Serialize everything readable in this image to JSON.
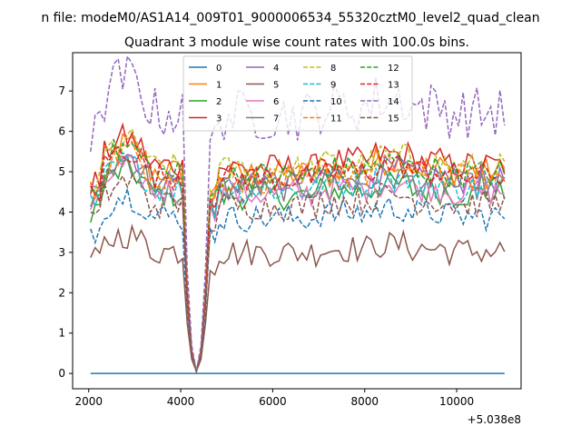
{
  "chart_data": {
    "type": "line",
    "suptitle": "n file: modeM0/AS1A14_009T01_9000006534_55320cztM0_level2_quad_clean",
    "title": "Quadrant 3 module wise count rates with 100.0s bins.",
    "x_offset_label": "+5.038e8",
    "xlim": [
      1650,
      11400
    ],
    "ylim": [
      -0.38,
      7.95
    ],
    "x_ticks": [
      2000,
      4000,
      6000,
      8000,
      10000
    ],
    "y_ticks": [
      0,
      1,
      2,
      3,
      4,
      5,
      6,
      7
    ],
    "x_range": [
      2040,
      11040
    ],
    "bin_seconds": 100,
    "dip_range": [
      4140,
      4540
    ],
    "legend_position": "upper center",
    "series": [
      {
        "name": "0",
        "color": "#1f77b4",
        "dash": "solid",
        "base": 0.0
      },
      {
        "name": "1",
        "color": "#ff7f0e",
        "dash": "solid",
        "base": 4.95
      },
      {
        "name": "2",
        "color": "#2ca02c",
        "dash": "solid",
        "base": 4.4
      },
      {
        "name": "3",
        "color": "#d62728",
        "dash": "solid",
        "base": 5.1
      },
      {
        "name": "4",
        "color": "#9467bd",
        "dash": "solid",
        "base": 4.75
      },
      {
        "name": "5",
        "color": "#8c564b",
        "dash": "solid",
        "base": 3.0
      },
      {
        "name": "6",
        "color": "#e377c2",
        "dash": "solid",
        "base": 4.45
      },
      {
        "name": "7",
        "color": "#7f7f7f",
        "dash": "solid",
        "base": 4.6
      },
      {
        "name": "8",
        "color": "#bcbd22",
        "dash": "dashed",
        "base": 5.05
      },
      {
        "name": "9",
        "color": "#17becf",
        "dash": "dashed",
        "base": 4.55
      },
      {
        "name": "10",
        "color": "#1f77b4",
        "dash": "dashed",
        "base": 3.85
      },
      {
        "name": "11",
        "color": "#ff7f0e",
        "dash": "dashed",
        "base": 4.8
      },
      {
        "name": "12",
        "color": "#2ca02c",
        "dash": "dashed",
        "base": 4.9
      },
      {
        "name": "13",
        "color": "#d62728",
        "dash": "dashed",
        "base": 4.85
      },
      {
        "name": "14",
        "color": "#9467bd",
        "dash": "dashed",
        "base": 6.4
      },
      {
        "name": "15",
        "color": "#8c564b",
        "dash": "dashed",
        "base": 4.15
      }
    ]
  }
}
